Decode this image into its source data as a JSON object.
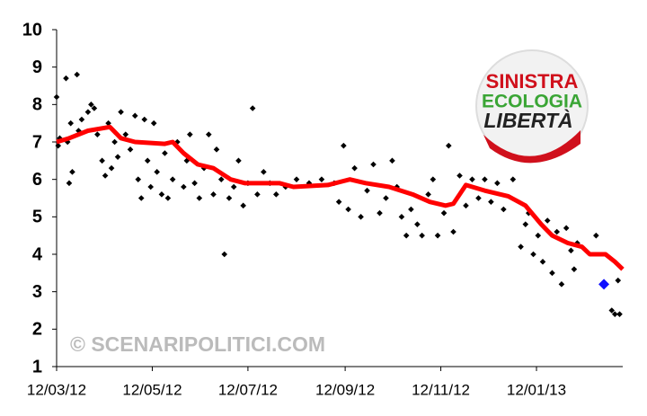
{
  "chart_data": {
    "type": "scatter",
    "watermark": "© SCENARIPOLITICI.COM",
    "logo": [
      "SINISTRA",
      "ECOLOGIA",
      "LIBERTÀ"
    ],
    "xlim": [
      "2012-03-12",
      "2013-03-08"
    ],
    "xticks": [
      {
        "value": "2012-03-12",
        "label": "12/03/12"
      },
      {
        "value": "2012-05-12",
        "label": "12/05/12"
      },
      {
        "value": "2012-07-12",
        "label": "12/07/12"
      },
      {
        "value": "2012-09-12",
        "label": "12/09/12"
      },
      {
        "value": "2012-11-12",
        "label": "12/11/12"
      },
      {
        "value": "2013-01-12",
        "label": "12/01/13"
      }
    ],
    "ylim": [
      1,
      10
    ],
    "yticks": [
      1,
      2,
      3,
      4,
      5,
      6,
      7,
      8,
      9,
      10
    ],
    "grid": false,
    "series": [
      {
        "style": "marker",
        "color": "#000000",
        "x": [
          "2012-03-12",
          "2012-03-13",
          "2012-03-14",
          "2012-03-18",
          "2012-03-19",
          "2012-03-20",
          "2012-03-21",
          "2012-03-22",
          "2012-03-25",
          "2012-03-26",
          "2012-03-28",
          "2012-04-01",
          "2012-04-03",
          "2012-04-05",
          "2012-04-07",
          "2012-04-10",
          "2012-04-12",
          "2012-04-14",
          "2012-04-16",
          "2012-04-18",
          "2012-04-20",
          "2012-04-22",
          "2012-04-25",
          "2012-04-28",
          "2012-05-01",
          "2012-05-03",
          "2012-05-05",
          "2012-05-07",
          "2012-05-09",
          "2012-05-11",
          "2012-05-13",
          "2012-05-15",
          "2012-05-18",
          "2012-05-20",
          "2012-05-22",
          "2012-05-25",
          "2012-05-28",
          "2012-06-01",
          "2012-06-03",
          "2012-06-05",
          "2012-06-08",
          "2012-06-11",
          "2012-06-14",
          "2012-06-17",
          "2012-06-20",
          "2012-06-22",
          "2012-06-25",
          "2012-06-27",
          "2012-06-30",
          "2012-07-03",
          "2012-07-06",
          "2012-07-09",
          "2012-07-12",
          "2012-07-15",
          "2012-07-18",
          "2012-07-22",
          "2012-07-26",
          "2012-07-30",
          "2012-08-05",
          "2012-08-12",
          "2012-08-20",
          "2012-08-28",
          "2012-09-05",
          "2012-09-08",
          "2012-09-11",
          "2012-09-14",
          "2012-09-18",
          "2012-09-22",
          "2012-09-26",
          "2012-09-30",
          "2012-10-04",
          "2012-10-08",
          "2012-10-12",
          "2012-10-15",
          "2012-10-18",
          "2012-10-21",
          "2012-10-24",
          "2012-10-28",
          "2012-10-31",
          "2012-11-04",
          "2012-11-07",
          "2012-11-10",
          "2012-11-14",
          "2012-11-17",
          "2012-11-20",
          "2012-11-24",
          "2012-11-28",
          "2012-12-02",
          "2012-12-06",
          "2012-12-10",
          "2012-12-14",
          "2012-12-18",
          "2012-12-22",
          "2012-12-28",
          "2013-01-02",
          "2013-01-05",
          "2013-01-07",
          "2013-01-10",
          "2013-01-13",
          "2013-01-16",
          "2013-01-19",
          "2013-01-22",
          "2013-01-25",
          "2013-01-28",
          "2013-01-31",
          "2013-02-03",
          "2013-02-05",
          "2013-02-07",
          "2013-02-19",
          "2013-03-01",
          "2013-03-03",
          "2013-03-05",
          "2013-03-06"
        ],
        "values": [
          8.2,
          6.9,
          7.1,
          8.7,
          7.0,
          5.9,
          7.5,
          6.2,
          8.8,
          7.3,
          7.6,
          7.8,
          8.0,
          7.9,
          7.2,
          6.5,
          6.1,
          7.5,
          6.3,
          7.0,
          6.6,
          7.8,
          7.2,
          6.8,
          7.7,
          6.0,
          5.5,
          7.6,
          6.5,
          5.8,
          7.5,
          6.2,
          5.6,
          6.7,
          5.5,
          6.0,
          7.0,
          5.8,
          6.5,
          7.2,
          5.9,
          5.5,
          6.3,
          7.2,
          5.6,
          6.8,
          6.0,
          4.0,
          5.5,
          5.8,
          6.5,
          5.3,
          5.9,
          7.9,
          5.6,
          6.2,
          5.9,
          5.6,
          5.8,
          6.0,
          5.9,
          6.0,
          5.9,
          5.4,
          6.9,
          5.2,
          6.3,
          5.0,
          5.7,
          6.4,
          5.1,
          5.5,
          6.5,
          5.8,
          5.0,
          4.5,
          5.2,
          4.8,
          4.5,
          5.6,
          6.0,
          4.5,
          5.1,
          6.9,
          4.6,
          6.1,
          5.3,
          6.0,
          5.5,
          6.0,
          5.4,
          5.9,
          5.2,
          6.0,
          4.2,
          4.8,
          5.1,
          4.0,
          4.5,
          3.8,
          4.9,
          3.5,
          4.6,
          3.2,
          4.7,
          4.1,
          3.6,
          4.3,
          4.5,
          2.5,
          2.4,
          3.3,
          2.4
        ]
      },
      {
        "style": "line",
        "color": "#ff0000",
        "x": [
          "2012-03-12",
          "2012-03-20",
          "2012-04-01",
          "2012-04-15",
          "2012-04-22",
          "2012-05-01",
          "2012-05-20",
          "2012-05-25",
          "2012-06-01",
          "2012-06-10",
          "2012-06-20",
          "2012-07-01",
          "2012-07-10",
          "2012-07-20",
          "2012-08-01",
          "2012-08-10",
          "2012-09-01",
          "2012-09-15",
          "2012-09-25",
          "2012-10-10",
          "2012-10-25",
          "2012-11-05",
          "2012-11-15",
          "2012-11-20",
          "2012-11-28",
          "2012-12-10",
          "2012-12-25",
          "2013-01-05",
          "2013-01-15",
          "2013-01-22",
          "2013-02-01",
          "2013-02-10",
          "2013-02-15",
          "2013-02-25",
          "2013-03-03",
          "2013-03-08"
        ],
        "values": [
          7.0,
          7.1,
          7.3,
          7.4,
          7.1,
          7.0,
          6.95,
          7.0,
          6.7,
          6.4,
          6.3,
          6.0,
          5.9,
          5.9,
          5.9,
          5.8,
          5.85,
          6.0,
          5.9,
          5.8,
          5.6,
          5.4,
          5.3,
          5.35,
          5.85,
          5.7,
          5.55,
          5.3,
          4.8,
          4.5,
          4.3,
          4.2,
          4.0,
          4.0,
          3.8,
          3.6
        ]
      },
      {
        "style": "marker",
        "color": "#1010ff",
        "x": [
          "2013-02-24"
        ],
        "values": [
          3.2
        ]
      }
    ]
  }
}
